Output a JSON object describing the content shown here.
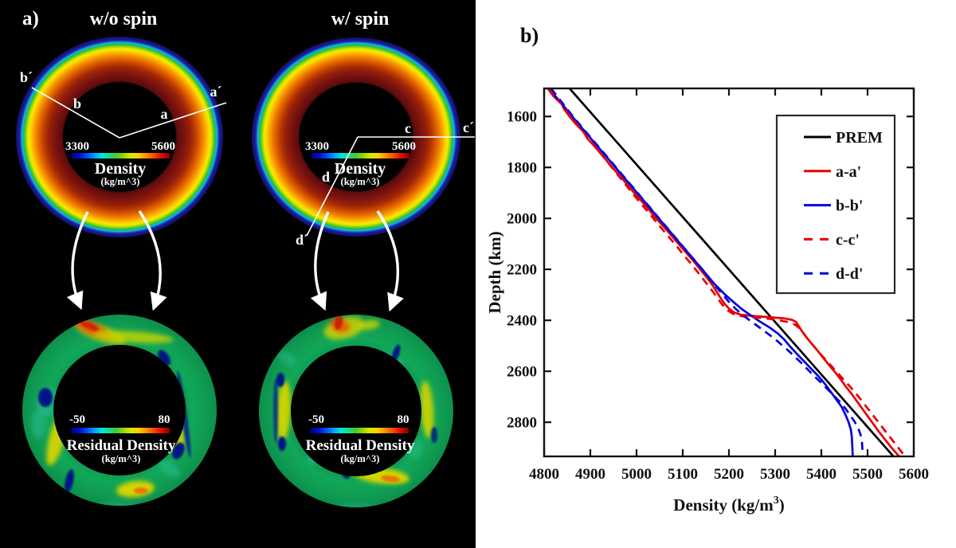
{
  "panel_a": {
    "label": "a)",
    "titles": {
      "left": "w/o spin",
      "right": "w/ spin"
    },
    "density_colorbar": {
      "min": "3300",
      "max": "5600",
      "title": "Density",
      "unit": "(kg/m^3)"
    },
    "residual_colorbar": {
      "min": "-50",
      "max": "80",
      "title": "Residual Density",
      "unit": "(kg/m^3)"
    },
    "cross_section_labels": {
      "left": {
        "b_prime": "b´",
        "b": "b",
        "a": "a",
        "a_prime": "a´"
      },
      "right": {
        "c": "c",
        "c_prime": "c´",
        "d": "d",
        "d_prime": "d´"
      }
    }
  },
  "panel_b": {
    "label": "b)"
  },
  "chart_data": {
    "type": "line",
    "title": "",
    "xlabel": "Density (kg/m³)",
    "xlabel_parts": {
      "main": "Density (kg/m",
      "sup": "3",
      "end": ")"
    },
    "ylabel": "Depth (km)",
    "xlim": [
      4800,
      5600
    ],
    "ylim": [
      1490,
      2934
    ],
    "depth_axis_increases_downward": true,
    "grid": false,
    "legend_position": "upper right inside",
    "xticks": [
      4800,
      4900,
      5000,
      5100,
      5200,
      5300,
      5400,
      5500,
      5600
    ],
    "yticks": [
      1600,
      1800,
      2000,
      2200,
      2400,
      2600,
      2800
    ],
    "series": [
      {
        "name": "PREM",
        "color": "#000000",
        "dash": "solid",
        "points": [
          [
            4855,
            1490
          ],
          [
            5556,
            2934
          ]
        ]
      },
      {
        "name": "a-a'",
        "color": "#e80000",
        "dash": "solid",
        "points": [
          [
            4808,
            1490
          ],
          [
            4820,
            1520
          ],
          [
            4838,
            1552
          ],
          [
            4843,
            1570
          ],
          [
            4855,
            1600
          ],
          [
            4868,
            1628
          ],
          [
            4886,
            1662
          ],
          [
            4893,
            1685
          ],
          [
            4908,
            1715
          ],
          [
            4925,
            1750
          ],
          [
            4936,
            1775
          ],
          [
            4950,
            1805
          ],
          [
            4966,
            1838
          ],
          [
            4980,
            1868
          ],
          [
            4995,
            1900
          ],
          [
            5012,
            1935
          ],
          [
            5028,
            1968
          ],
          [
            5040,
            1995
          ],
          [
            5055,
            2025
          ],
          [
            5072,
            2060
          ],
          [
            5085,
            2088
          ],
          [
            5098,
            2115
          ],
          [
            5114,
            2148
          ],
          [
            5128,
            2178
          ],
          [
            5140,
            2205
          ],
          [
            5152,
            2232
          ],
          [
            5163,
            2258
          ],
          [
            5172,
            2284
          ],
          [
            5181,
            2310
          ],
          [
            5190,
            2334
          ],
          [
            5200,
            2354
          ],
          [
            5212,
            2370
          ],
          [
            5226,
            2378
          ],
          [
            5258,
            2384
          ],
          [
            5292,
            2388
          ],
          [
            5318,
            2392
          ],
          [
            5336,
            2398
          ],
          [
            5345,
            2406
          ],
          [
            5350,
            2420
          ],
          [
            5357,
            2440
          ],
          [
            5367,
            2465
          ],
          [
            5378,
            2490
          ],
          [
            5390,
            2515
          ],
          [
            5403,
            2545
          ],
          [
            5415,
            2572
          ],
          [
            5429,
            2602
          ],
          [
            5441,
            2630
          ],
          [
            5453,
            2660
          ],
          [
            5466,
            2690
          ],
          [
            5477,
            2718
          ],
          [
            5489,
            2748
          ],
          [
            5501,
            2778
          ],
          [
            5512,
            2806
          ],
          [
            5524,
            2836
          ],
          [
            5537,
            2866
          ],
          [
            5551,
            2898
          ],
          [
            5564,
            2925
          ],
          [
            5568,
            2934
          ]
        ]
      },
      {
        "name": "b-b'",
        "color": "#0000dd",
        "dash": "solid",
        "points": [
          [
            4812,
            1490
          ],
          [
            4822,
            1516
          ],
          [
            4836,
            1545
          ],
          [
            4850,
            1576
          ],
          [
            4860,
            1598
          ],
          [
            4872,
            1625
          ],
          [
            4888,
            1658
          ],
          [
            4900,
            1684
          ],
          [
            4914,
            1714
          ],
          [
            4930,
            1748
          ],
          [
            4946,
            1782
          ],
          [
            4960,
            1812
          ],
          [
            4975,
            1844
          ],
          [
            4990,
            1876
          ],
          [
            5005,
            1908
          ],
          [
            5020,
            1940
          ],
          [
            5035,
            1972
          ],
          [
            5050,
            2004
          ],
          [
            5065,
            2036
          ],
          [
            5080,
            2068
          ],
          [
            5095,
            2100
          ],
          [
            5110,
            2132
          ],
          [
            5125,
            2164
          ],
          [
            5140,
            2196
          ],
          [
            5155,
            2228
          ],
          [
            5168,
            2256
          ],
          [
            5180,
            2278
          ],
          [
            5192,
            2300
          ],
          [
            5211,
            2330
          ],
          [
            5228,
            2356
          ],
          [
            5247,
            2380
          ],
          [
            5266,
            2404
          ],
          [
            5288,
            2428
          ],
          [
            5306,
            2452
          ],
          [
            5320,
            2476
          ],
          [
            5331,
            2500
          ],
          [
            5346,
            2530
          ],
          [
            5362,
            2560
          ],
          [
            5378,
            2590
          ],
          [
            5394,
            2620
          ],
          [
            5408,
            2650
          ],
          [
            5420,
            2680
          ],
          [
            5432,
            2710
          ],
          [
            5444,
            2740
          ],
          [
            5452,
            2770
          ],
          [
            5459,
            2800
          ],
          [
            5464,
            2830
          ],
          [
            5466,
            2860
          ],
          [
            5467,
            2900
          ],
          [
            5468,
            2934
          ]
        ]
      },
      {
        "name": "c-c'",
        "color": "#e80000",
        "dash": "dashed",
        "points": [
          [
            4812,
            1490
          ],
          [
            4826,
            1525
          ],
          [
            4841,
            1558
          ],
          [
            4854,
            1590
          ],
          [
            4868,
            1622
          ],
          [
            4882,
            1654
          ],
          [
            4897,
            1688
          ],
          [
            4912,
            1722
          ],
          [
            4927,
            1756
          ],
          [
            4942,
            1790
          ],
          [
            4957,
            1824
          ],
          [
            4972,
            1858
          ],
          [
            4987,
            1892
          ],
          [
            5002,
            1926
          ],
          [
            5017,
            1958
          ],
          [
            5032,
            1990
          ],
          [
            5046,
            2022
          ],
          [
            5060,
            2052
          ],
          [
            5075,
            2084
          ],
          [
            5089,
            2114
          ],
          [
            5103,
            2146
          ],
          [
            5117,
            2176
          ],
          [
            5131,
            2208
          ],
          [
            5144,
            2238
          ],
          [
            5156,
            2266
          ],
          [
            5167,
            2292
          ],
          [
            5177,
            2318
          ],
          [
            5187,
            2342
          ],
          [
            5198,
            2362
          ],
          [
            5210,
            2376
          ],
          [
            5228,
            2384
          ],
          [
            5252,
            2388
          ],
          [
            5278,
            2392
          ],
          [
            5304,
            2398
          ],
          [
            5326,
            2406
          ],
          [
            5342,
            2416
          ],
          [
            5352,
            2430
          ],
          [
            5360,
            2448
          ],
          [
            5370,
            2472
          ],
          [
            5382,
            2498
          ],
          [
            5394,
            2524
          ],
          [
            5408,
            2552
          ],
          [
            5422,
            2580
          ],
          [
            5436,
            2608
          ],
          [
            5450,
            2636
          ],
          [
            5464,
            2664
          ],
          [
            5478,
            2694
          ],
          [
            5490,
            2722
          ],
          [
            5502,
            2750
          ],
          [
            5514,
            2778
          ],
          [
            5526,
            2806
          ],
          [
            5538,
            2834
          ],
          [
            5551,
            2864
          ],
          [
            5564,
            2894
          ],
          [
            5576,
            2922
          ],
          [
            5582,
            2934
          ]
        ]
      },
      {
        "name": "d-d'",
        "color": "#0000dd",
        "dash": "dashed",
        "points": [
          [
            4815,
            1490
          ],
          [
            4827,
            1518
          ],
          [
            4840,
            1548
          ],
          [
            4853,
            1578
          ],
          [
            4866,
            1608
          ],
          [
            4880,
            1638
          ],
          [
            4894,
            1668
          ],
          [
            4908,
            1698
          ],
          [
            4922,
            1728
          ],
          [
            4936,
            1758
          ],
          [
            4950,
            1788
          ],
          [
            4964,
            1818
          ],
          [
            4978,
            1848
          ],
          [
            4992,
            1878
          ],
          [
            5006,
            1908
          ],
          [
            5020,
            1938
          ],
          [
            5034,
            1968
          ],
          [
            5048,
            1998
          ],
          [
            5062,
            2028
          ],
          [
            5076,
            2058
          ],
          [
            5090,
            2088
          ],
          [
            5104,
            2118
          ],
          [
            5118,
            2148
          ],
          [
            5132,
            2178
          ],
          [
            5146,
            2208
          ],
          [
            5159,
            2238
          ],
          [
            5172,
            2268
          ],
          [
            5186,
            2298
          ],
          [
            5200,
            2328
          ],
          [
            5214,
            2354
          ],
          [
            5230,
            2380
          ],
          [
            5248,
            2404
          ],
          [
            5266,
            2428
          ],
          [
            5284,
            2452
          ],
          [
            5300,
            2474
          ],
          [
            5314,
            2496
          ],
          [
            5328,
            2518
          ],
          [
            5342,
            2542
          ],
          [
            5356,
            2566
          ],
          [
            5370,
            2592
          ],
          [
            5384,
            2618
          ],
          [
            5398,
            2642
          ],
          [
            5412,
            2668
          ],
          [
            5426,
            2694
          ],
          [
            5440,
            2720
          ],
          [
            5452,
            2746
          ],
          [
            5462,
            2772
          ],
          [
            5472,
            2798
          ],
          [
            5480,
            2824
          ],
          [
            5485,
            2850
          ],
          [
            5488,
            2880
          ],
          [
            5489,
            2910
          ],
          [
            5490,
            2934
          ]
        ]
      }
    ]
  }
}
